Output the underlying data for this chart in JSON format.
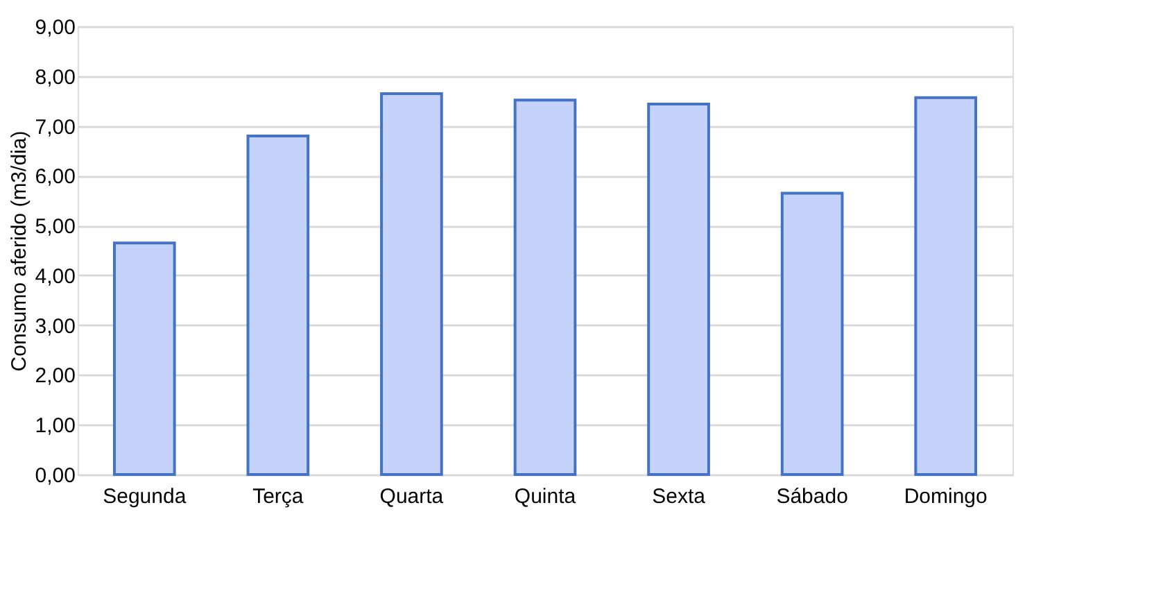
{
  "chart_data": {
    "type": "bar",
    "ylabel": "Consumo aferido (m3/dia)",
    "categories": [
      "Segunda",
      "Terça",
      "Quarta",
      "Quinta",
      "Sexta",
      "Sábado",
      "Domingo"
    ],
    "values": [
      4.65,
      6.8,
      7.65,
      7.52,
      7.44,
      5.65,
      7.57
    ],
    "color": "#c5d3fa",
    "ylim": [
      0,
      9
    ],
    "yticks": [
      {
        "value": 0,
        "label": "0,00"
      },
      {
        "value": 1,
        "label": "1,00"
      },
      {
        "value": 2,
        "label": "2,00"
      },
      {
        "value": 3,
        "label": "3,00"
      },
      {
        "value": 4,
        "label": "4,00"
      },
      {
        "value": 5,
        "label": "5,00"
      },
      {
        "value": 6,
        "label": "6,00"
      },
      {
        "value": 7,
        "label": "7,00"
      },
      {
        "value": 8,
        "label": "8,00"
      },
      {
        "value": 9,
        "label": "9,00"
      }
    ],
    "grid": "y"
  }
}
